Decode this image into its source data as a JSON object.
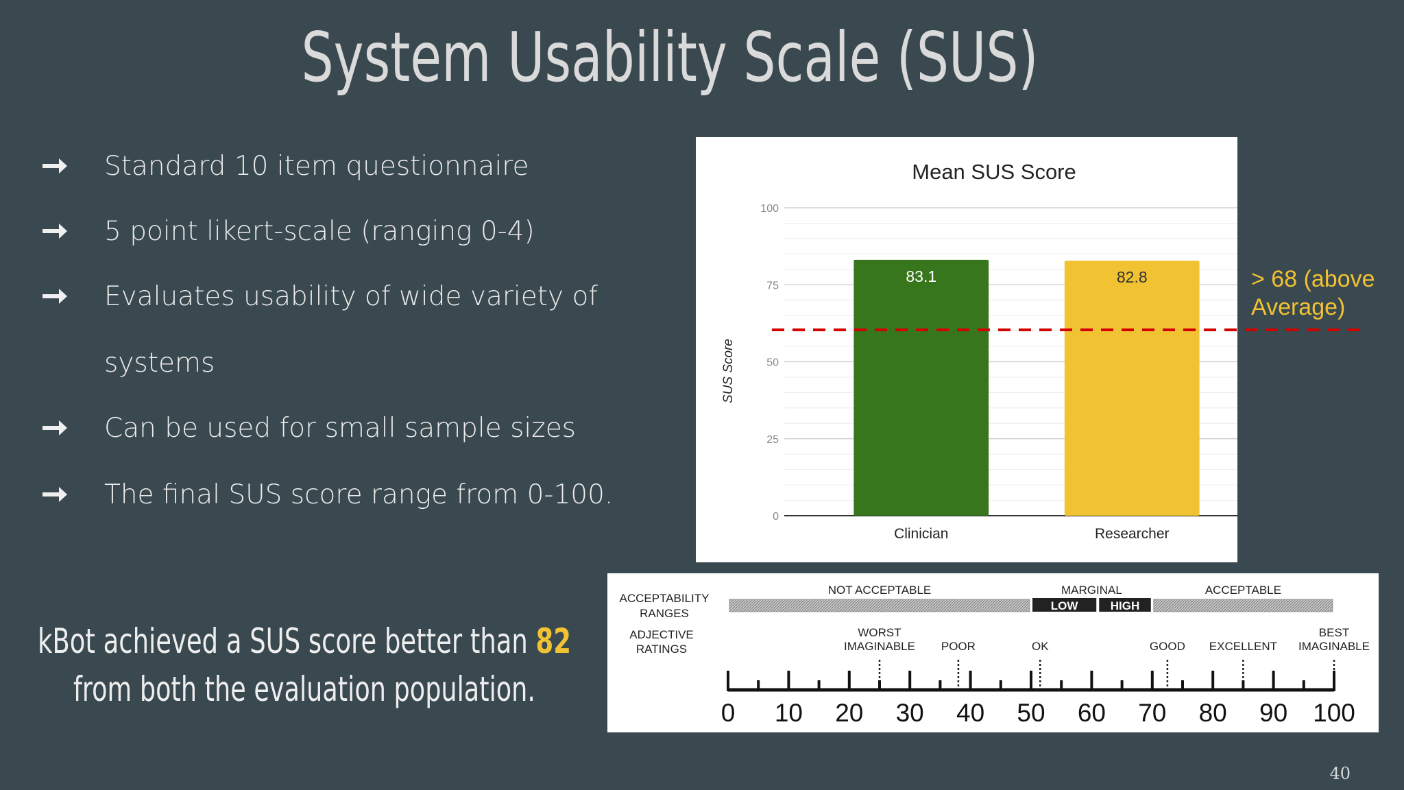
{
  "title": "System Usability Scale (SUS)",
  "bullets": [
    [
      "Standard 10 item questionnaire"
    ],
    [
      "5 point likert-scale (ranging 0-4)"
    ],
    [
      "Evaluates usability of wide variety of",
      "systems"
    ],
    [
      "Can be used for small sample sizes"
    ],
    [
      "The final SUS score range from 0-100."
    ]
  ],
  "conclusion": {
    "line1": [
      "kBot achieved a SUS score better than ",
      "82"
    ],
    "line2": "from both the evaluation population."
  },
  "annotation": [
    "> 68 (above",
    "Average)"
  ],
  "page_number": "40",
  "chart_data": {
    "type": "bar",
    "title": "Mean SUS Score",
    "y_label": "SUS Score",
    "categories": [
      "Clinician",
      "Researcher"
    ],
    "values": [
      83.1,
      82.8
    ],
    "colors": [
      "#38761d",
      "#f1c232"
    ],
    "value_label_colors": [
      "#ffffff",
      "#333333"
    ],
    "ylim": [
      0,
      100
    ],
    "yticks": [
      0,
      25,
      50,
      75,
      100
    ],
    "minor_yticks": [
      5,
      10,
      15,
      20,
      30,
      35,
      40,
      45,
      55,
      60,
      65,
      70,
      80,
      85,
      90,
      95
    ],
    "grid": true
  },
  "scale": {
    "ticks": [
      0,
      10,
      20,
      30,
      40,
      50,
      60,
      70,
      80,
      90,
      100
    ],
    "minor_ticks": [
      5,
      15,
      25,
      35,
      45,
      55,
      65,
      75,
      85,
      95
    ],
    "range_heading": [
      "ACCEPTABILITY",
      "RANGES"
    ],
    "rating_heading": [
      "ADJECTIVE",
      "RATINGS"
    ],
    "ranges": [
      {
        "label": "NOT  ACCEPTABLE",
        "from": 0,
        "to": 50
      },
      {
        "label": "MARGINAL",
        "from": 50,
        "to": 70,
        "parts": [
          {
            "label": "LOW",
            "from": 50,
            "to": 61
          },
          {
            "label": "HIGH",
            "from": 61,
            "to": 70
          }
        ]
      },
      {
        "label": "ACCEPTABLE",
        "from": 70,
        "to": 100
      }
    ],
    "ratings": [
      {
        "label": [
          "WORST",
          "IMAGINABLE"
        ],
        "value": 25
      },
      {
        "label": [
          "POOR"
        ],
        "value": 38
      },
      {
        "label": [
          "OK"
        ],
        "value": 51.5
      },
      {
        "label": [
          "GOOD"
        ],
        "value": 72.5
      },
      {
        "label": [
          "EXCELLENT"
        ],
        "value": 85
      },
      {
        "label": [
          "BEST",
          "IMAGINABLE"
        ],
        "value": 100
      }
    ]
  }
}
